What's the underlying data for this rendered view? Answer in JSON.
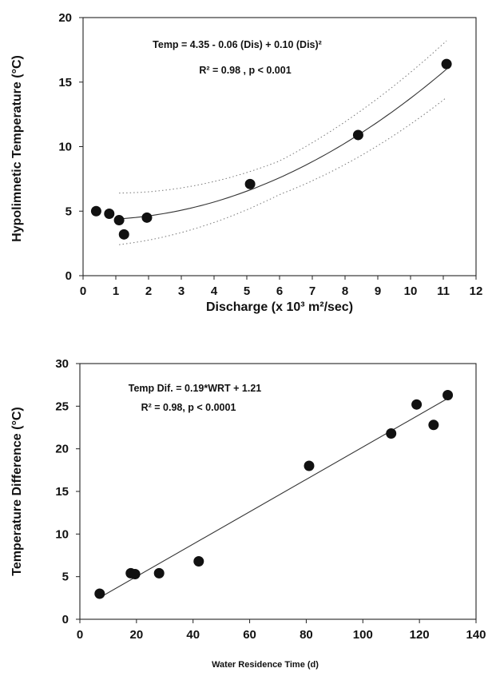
{
  "chart_data": [
    {
      "type": "scatter",
      "xlabel": "Discharge  (x 10³  m²/sec)",
      "ylabel": "Hypolimnetic  Temperature  (°C)",
      "xlim": [
        0,
        12
      ],
      "ylim": [
        0,
        20
      ],
      "x_ticks": [
        "0",
        "1",
        "2",
        "3",
        "4",
        "5",
        "6",
        "7",
        "8",
        "9",
        "10",
        "11",
        "12"
      ],
      "y_ticks": [
        "0",
        "5",
        "10",
        "15",
        "20"
      ],
      "points": [
        {
          "x": 0.4,
          "y": 5.0
        },
        {
          "x": 0.8,
          "y": 4.8
        },
        {
          "x": 1.1,
          "y": 4.3
        },
        {
          "x": 1.25,
          "y": 3.2
        },
        {
          "x": 1.95,
          "y": 4.5
        },
        {
          "x": 5.1,
          "y": 7.1
        },
        {
          "x": 8.4,
          "y": 10.9
        },
        {
          "x": 11.1,
          "y": 16.4
        }
      ],
      "fit": {
        "type": "quadratic",
        "coefficients": [
          4.35,
          -0.06,
          0.1
        ],
        "x_range": [
          1.1,
          11.1
        ]
      },
      "confidence_band": {
        "style": "dotted",
        "half_width_at_x": [
          [
            1.1,
            2.0
          ],
          [
            6.0,
            1.3
          ],
          [
            11.1,
            2.2
          ]
        ]
      },
      "grid": false,
      "annotations": [
        "Temp  =  4.35 - 0.06 (Dis) + 0.10 (Dis)²",
        "R² = 0.98  ,  p < 0.001"
      ]
    },
    {
      "type": "scatter",
      "xlabel": "Water Residence Time  (d)",
      "ylabel": "Temperature Difference (°C)",
      "xlim": [
        0,
        140
      ],
      "ylim": [
        0,
        30
      ],
      "x_ticks": [
        "0",
        "20",
        "40",
        "60",
        "80",
        "100",
        "120",
        "140"
      ],
      "y_ticks": [
        "0",
        "5",
        "10",
        "15",
        "20",
        "25",
        "30"
      ],
      "points": [
        {
          "x": 7,
          "y": 3.0
        },
        {
          "x": 18,
          "y": 5.4
        },
        {
          "x": 19.5,
          "y": 5.3
        },
        {
          "x": 28,
          "y": 5.4
        },
        {
          "x": 42,
          "y": 6.8
        },
        {
          "x": 81,
          "y": 18.0
        },
        {
          "x": 110,
          "y": 21.8
        },
        {
          "x": 119,
          "y": 25.2
        },
        {
          "x": 125,
          "y": 22.8
        },
        {
          "x": 130,
          "y": 26.3
        }
      ],
      "fit": {
        "type": "linear",
        "slope": 0.19,
        "intercept": 1.21,
        "x_range": [
          7,
          130
        ]
      },
      "grid": false,
      "annotations": [
        "Temp Dif. = 0.19*WRT + 1.21",
        "R² = 0.98, p < 0.0001"
      ]
    }
  ]
}
